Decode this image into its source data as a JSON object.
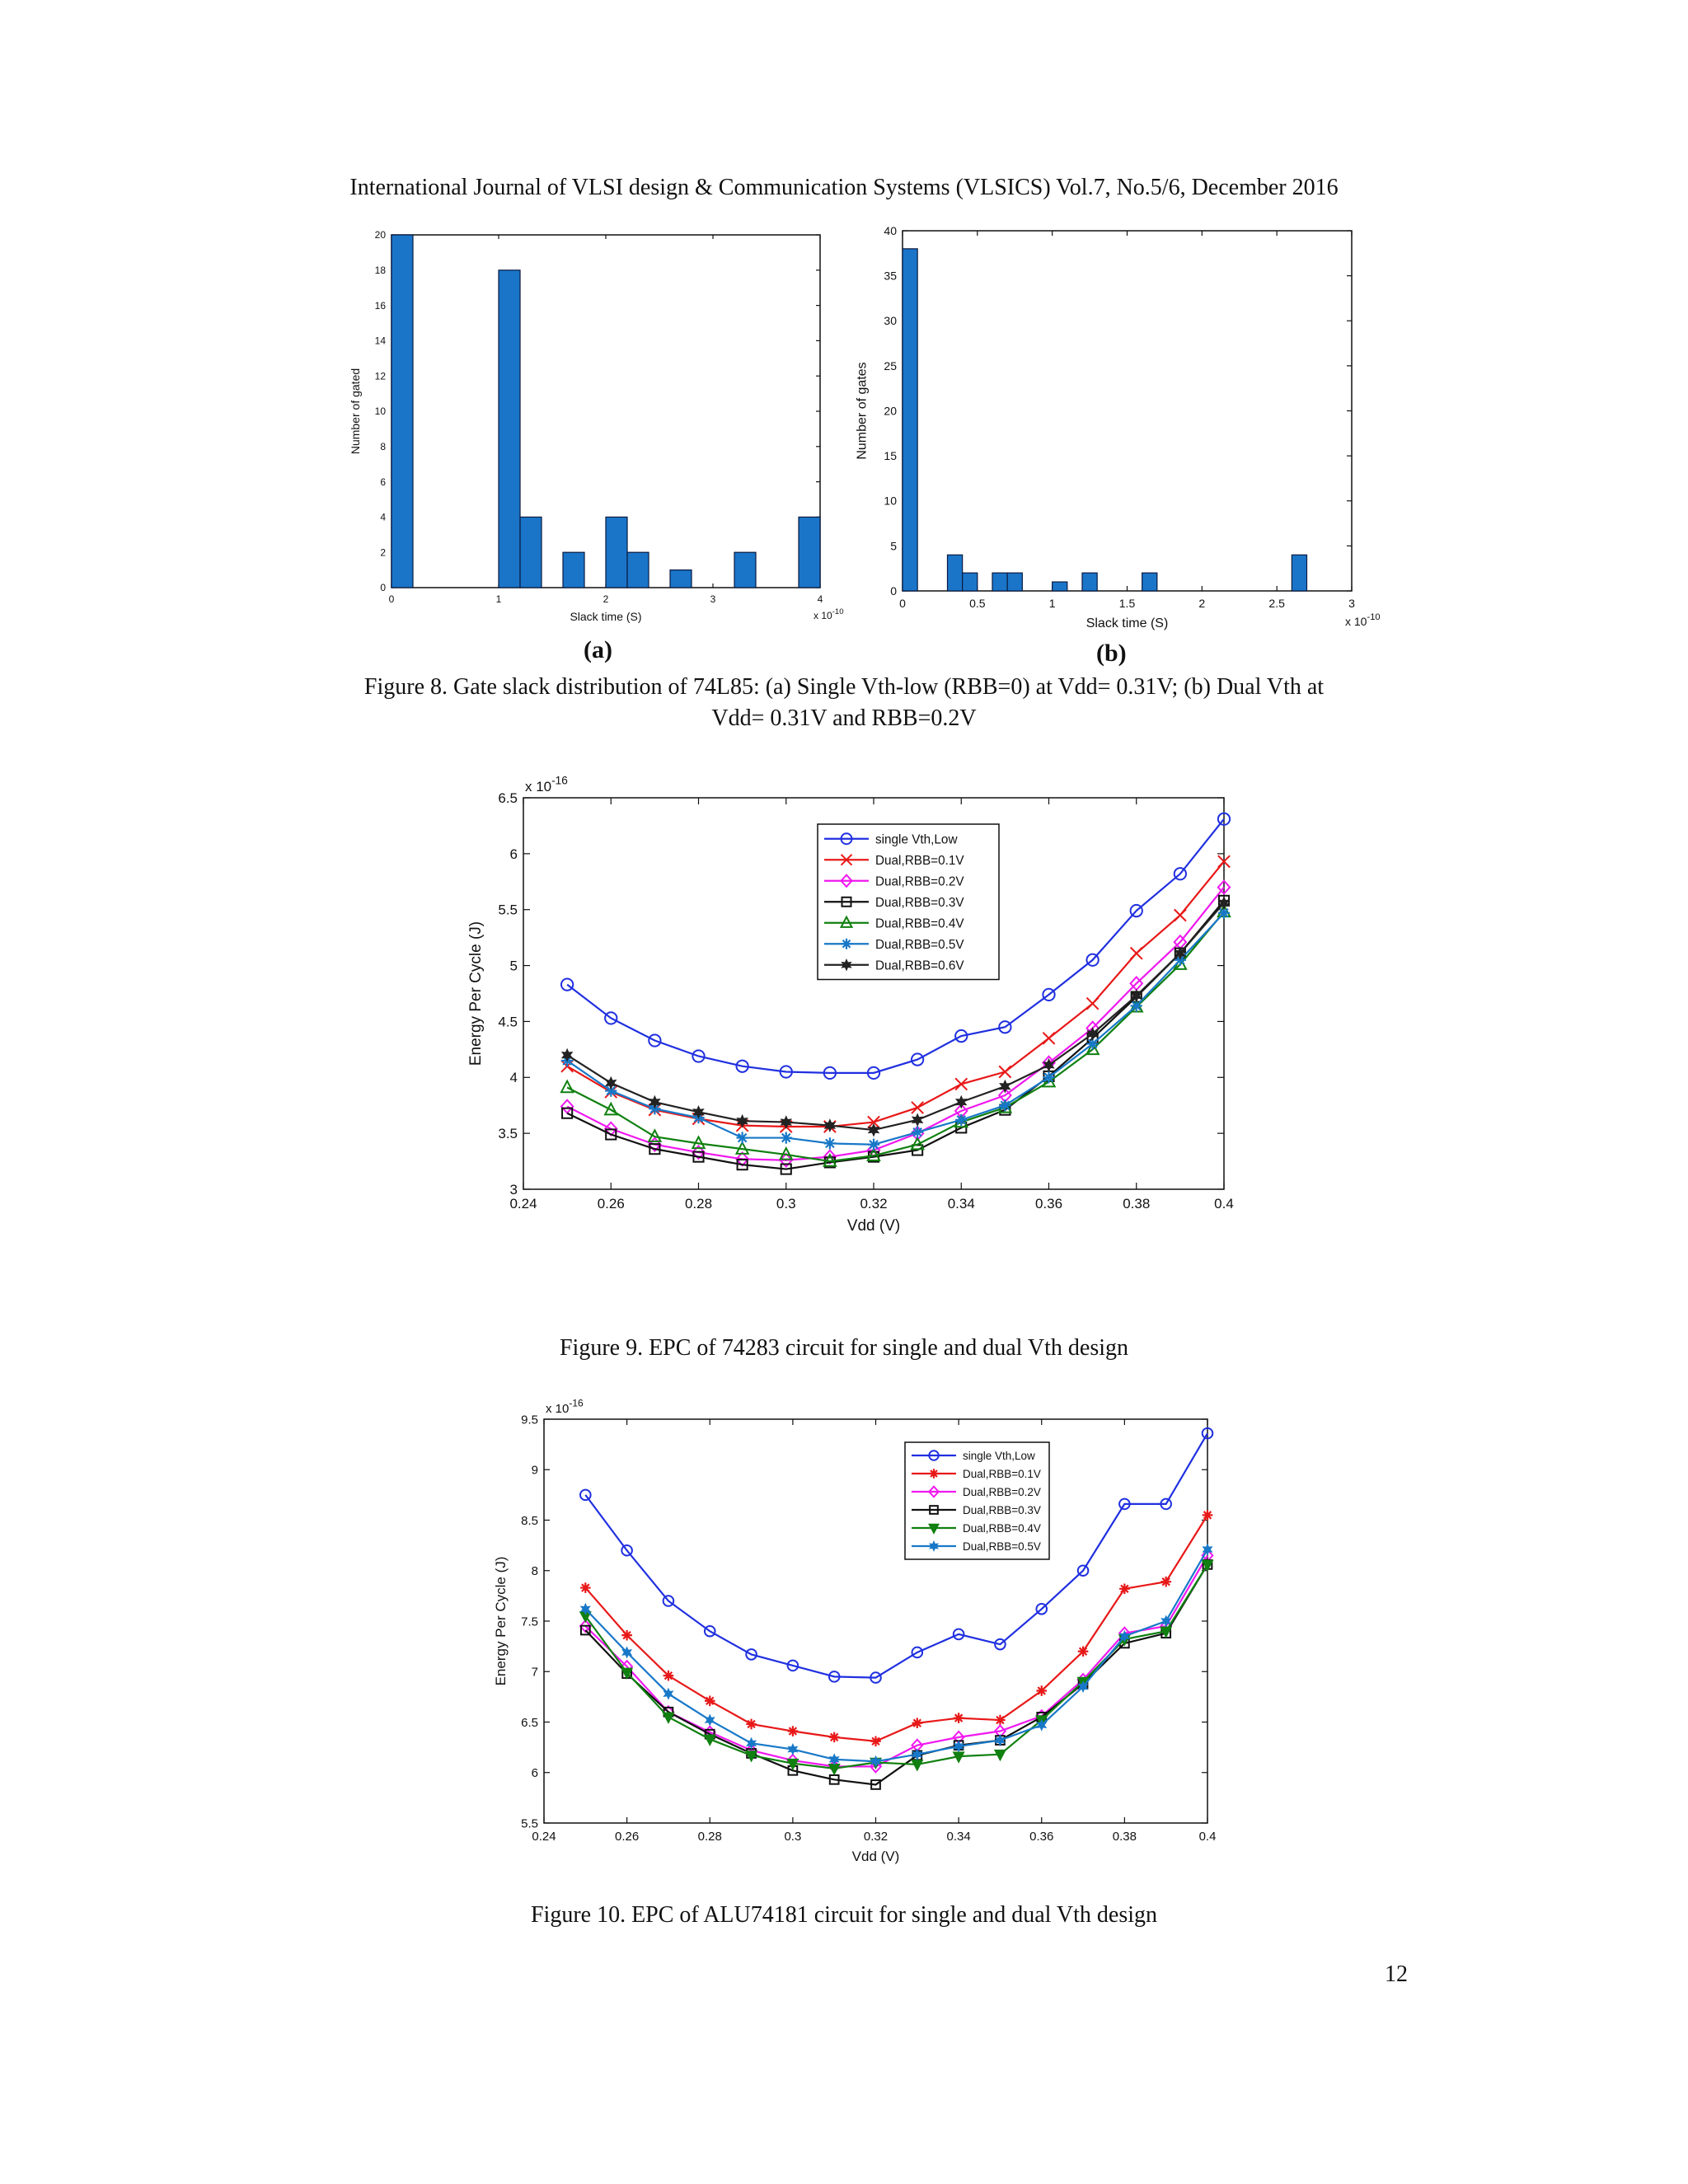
{
  "header": "International Journal of VLSI design & Communication Systems (VLSICS) Vol.7, No.5/6, December 2016",
  "page_number": "12",
  "figure8": {
    "caption_line1": "Figure 8. Gate slack distribution of 74L85: (a) Single Vth-low (RBB=0) at Vdd= 0.31V; (b) Dual Vth at",
    "caption_line2": "Vdd= 0.31V and RBB=0.2V",
    "panel_a_label": "(a)",
    "panel_b_label": "(b)"
  },
  "figure9": {
    "caption": "Figure 9. EPC of 74283 circuit for single and dual Vth design"
  },
  "figure10": {
    "caption": "Figure 10. EPC of ALU74181 circuit for single and dual Vth design"
  },
  "colors": {
    "bar": "#1a75c9",
    "blue": "#2030e0",
    "red": "#e81818",
    "magenta": "#f018f0",
    "black": "#111111",
    "green": "#108010",
    "teal": "#1878c8"
  },
  "chart_data": [
    {
      "id": "fig8a",
      "type": "bar",
      "xlabel": "Slack time (S)",
      "ylabel": "Number of gated",
      "x_multiplier": "x 10",
      "x_exponent": "-10",
      "xlim": [
        0,
        4
      ],
      "ylim": [
        0,
        20
      ],
      "xticks": [
        0,
        1,
        2,
        3,
        4
      ],
      "yticks": [
        0,
        2,
        4,
        6,
        8,
        10,
        12,
        14,
        16,
        18,
        20
      ],
      "bin_width": 0.2,
      "x": [
        0.0,
        1.0,
        1.2,
        1.6,
        2.0,
        2.2,
        2.6,
        3.2,
        3.8
      ],
      "values": [
        20,
        18,
        4,
        2,
        4,
        2,
        1,
        2,
        4
      ]
    },
    {
      "id": "fig8b",
      "type": "bar",
      "xlabel": "Slack time (S)",
      "ylabel": "Number of gates",
      "x_multiplier": "x 10",
      "x_exponent": "-10",
      "xlim": [
        0,
        3
      ],
      "ylim": [
        0,
        40
      ],
      "xticks": [
        0,
        0.5,
        1,
        1.5,
        2,
        2.5,
        3
      ],
      "yticks": [
        0,
        5,
        10,
        15,
        20,
        25,
        30,
        35,
        40
      ],
      "bin_width": 0.1,
      "x": [
        0.0,
        0.3,
        0.4,
        0.6,
        0.7,
        0.9,
        1.0,
        1.2,
        1.6,
        2.6
      ],
      "values": [
        38,
        4,
        2,
        2,
        2,
        0,
        1,
        2,
        2,
        4
      ]
    },
    {
      "id": "fig9",
      "type": "line",
      "xlabel": "Vdd (V)",
      "ylabel": "Energy Per Cycle (J)",
      "y_multiplier": "x 10",
      "y_exponent": "-16",
      "xlim": [
        0.24,
        0.4
      ],
      "ylim": [
        3,
        6.5
      ],
      "xticks": [
        0.24,
        0.26,
        0.28,
        0.3,
        0.32,
        0.34,
        0.36,
        0.38,
        0.4
      ],
      "yticks": [
        3,
        3.5,
        4,
        4.5,
        5,
        5.5,
        6,
        6.5
      ],
      "legend_position": "top-center",
      "x": [
        0.25,
        0.26,
        0.27,
        0.28,
        0.29,
        0.3,
        0.31,
        0.32,
        0.33,
        0.34,
        0.35,
        0.36,
        0.37,
        0.38,
        0.39,
        0.4
      ],
      "series": [
        {
          "name": "single Vth,Low",
          "color": "#2030e0",
          "marker": "circle",
          "values": [
            4.83,
            4.53,
            4.33,
            4.19,
            4.1,
            4.05,
            4.04,
            4.04,
            4.16,
            4.37,
            4.45,
            4.74,
            5.05,
            5.49,
            5.82,
            6.31
          ]
        },
        {
          "name": "Dual,RBB=0.1V",
          "color": "#e81818",
          "marker": "x",
          "values": [
            4.1,
            3.87,
            3.71,
            3.63,
            3.57,
            3.56,
            3.56,
            3.6,
            3.73,
            3.94,
            4.05,
            4.35,
            4.66,
            5.11,
            5.45,
            5.93
          ]
        },
        {
          "name": "Dual,RBB=0.2V",
          "color": "#f018f0",
          "marker": "diamond",
          "values": [
            3.74,
            3.54,
            3.4,
            3.33,
            3.27,
            3.26,
            3.29,
            3.35,
            3.5,
            3.7,
            3.84,
            4.13,
            4.44,
            4.84,
            5.21,
            5.7
          ]
        },
        {
          "name": "Dual,RBB=0.3V",
          "color": "#111111",
          "marker": "square",
          "values": [
            3.68,
            3.49,
            3.36,
            3.29,
            3.22,
            3.18,
            3.24,
            3.29,
            3.35,
            3.55,
            3.71,
            4.01,
            4.35,
            4.72,
            5.11,
            5.58
          ]
        },
        {
          "name": "Dual,RBB=0.4V",
          "color": "#108010",
          "marker": "triangle",
          "values": [
            3.91,
            3.71,
            3.47,
            3.41,
            3.36,
            3.31,
            3.25,
            3.3,
            3.4,
            3.6,
            3.73,
            3.96,
            4.25,
            4.63,
            5.01,
            5.48
          ]
        },
        {
          "name": "Dual,RBB=0.5V",
          "color": "#1878c8",
          "marker": "star",
          "values": [
            4.15,
            3.88,
            3.72,
            3.64,
            3.46,
            3.46,
            3.41,
            3.4,
            3.51,
            3.62,
            3.75,
            4.0,
            4.3,
            4.64,
            5.05,
            5.47
          ]
        },
        {
          "name": "Dual,RBB=0.6V",
          "color": "#222222",
          "marker": "hexagram",
          "values": [
            4.2,
            3.95,
            3.78,
            3.69,
            3.61,
            3.6,
            3.57,
            3.53,
            3.62,
            3.78,
            3.92,
            4.11,
            4.39,
            4.73,
            5.11,
            5.56
          ]
        }
      ]
    },
    {
      "id": "fig10",
      "type": "line",
      "xlabel": "Vdd (V)",
      "ylabel": "Energy Per Cycle (J)",
      "y_multiplier": "x 10",
      "y_exponent": "-16",
      "xlim": [
        0.24,
        0.4
      ],
      "ylim": [
        5.5,
        9.5
      ],
      "xticks": [
        0.24,
        0.26,
        0.28,
        0.3,
        0.32,
        0.34,
        0.36,
        0.38,
        0.4
      ],
      "yticks": [
        5.5,
        6,
        6.5,
        7,
        7.5,
        8,
        8.5,
        9,
        9.5
      ],
      "legend_position": "top-right",
      "x": [
        0.25,
        0.26,
        0.27,
        0.28,
        0.29,
        0.3,
        0.31,
        0.32,
        0.33,
        0.34,
        0.35,
        0.36,
        0.37,
        0.38,
        0.39,
        0.4
      ],
      "series": [
        {
          "name": "single Vth,Low",
          "color": "#2030e0",
          "marker": "circle",
          "values": [
            8.75,
            8.2,
            7.7,
            7.4,
            7.17,
            7.06,
            6.95,
            6.94,
            7.19,
            7.37,
            7.27,
            7.62,
            8.0,
            8.66,
            8.66,
            9.36
          ]
        },
        {
          "name": "Dual,RBB=0.1V",
          "color": "#e81818",
          "marker": "asterisk",
          "values": [
            7.83,
            7.36,
            6.96,
            6.71,
            6.48,
            6.41,
            6.35,
            6.31,
            6.49,
            6.54,
            6.52,
            6.81,
            7.2,
            7.82,
            7.89,
            8.55
          ]
        },
        {
          "name": "Dual,RBB=0.2V",
          "color": "#f018f0",
          "marker": "diamond",
          "values": [
            7.45,
            7.05,
            6.6,
            6.4,
            6.22,
            6.12,
            6.06,
            6.06,
            6.27,
            6.35,
            6.41,
            6.56,
            6.92,
            7.38,
            7.45,
            8.15
          ]
        },
        {
          "name": "Dual,RBB=0.3V",
          "color": "#111111",
          "marker": "square",
          "values": [
            7.41,
            6.98,
            6.6,
            6.38,
            6.19,
            6.02,
            5.93,
            5.88,
            6.17,
            6.27,
            6.32,
            6.55,
            6.88,
            7.28,
            7.38,
            8.06
          ]
        },
        {
          "name": "Dual,RBB=0.4V",
          "color": "#108010",
          "marker": "triangle-down",
          "values": [
            7.55,
            6.99,
            6.55,
            6.33,
            6.17,
            6.09,
            6.04,
            6.1,
            6.08,
            6.16,
            6.18,
            6.52,
            6.9,
            7.32,
            7.4,
            8.06
          ]
        },
        {
          "name": "Dual,RBB=0.5V",
          "color": "#1878c8",
          "marker": "hexagram",
          "values": [
            7.62,
            7.19,
            6.78,
            6.52,
            6.29,
            6.23,
            6.13,
            6.11,
            6.18,
            6.26,
            6.32,
            6.47,
            6.85,
            7.35,
            7.5,
            8.21
          ]
        }
      ]
    }
  ]
}
